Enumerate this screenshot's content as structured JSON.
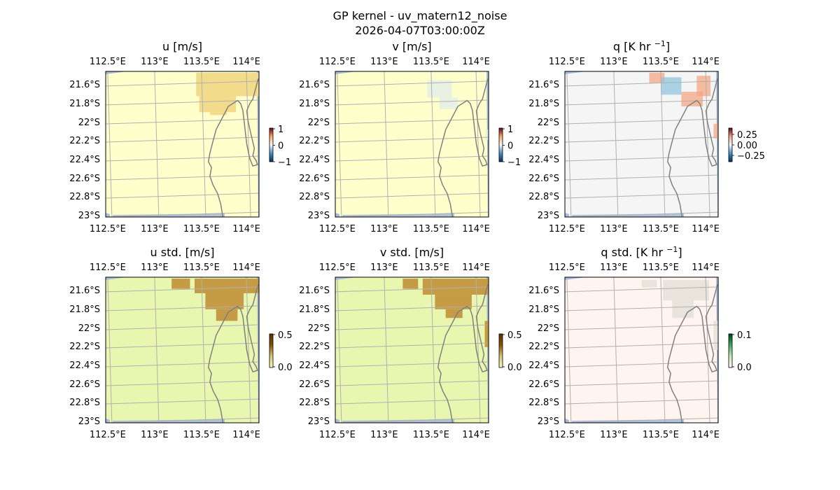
{
  "figure": {
    "title": "GP kernel - uv_matern12_noise",
    "subtitle": "2026-04-07T03:00:00Z"
  },
  "lon_ticks": [
    "112.5°E",
    "113°E",
    "113.5°E",
    "114°E"
  ],
  "lat_ticks": [
    "21.6°S",
    "21.8°S",
    "22°S",
    "22.2°S",
    "22.4°S",
    "22.6°S",
    "22.8°S",
    "23°S"
  ],
  "colors": {
    "ocean": "#a6bddb",
    "grid": "#b0b0b0",
    "coast": "#808080",
    "u_base": "#ffffcc",
    "u_patch": "#f2dc8c",
    "v_base": "#ffffcc",
    "v_patch": "#e6efe6",
    "q_base": "#f5f5f5",
    "q_warm": "#f4a582",
    "q_cool": "#92c5de",
    "std_uv_base": "#e9f6b0",
    "std_uv_patch": "#c69b45",
    "std_q_base": "#fff4f0",
    "std_q_patch": "#e8e4dc"
  },
  "panels": [
    {
      "id": "u",
      "title_main": "u [m/s]",
      "title_sup": "",
      "title_end": "",
      "base": "u_base",
      "patch": "u_patch",
      "ticks": [
        "1",
        "0",
        "−1"
      ]
    },
    {
      "id": "v",
      "title_main": "v [m/s]",
      "title_sup": "",
      "title_end": "",
      "base": "v_base",
      "patch": "v_patch",
      "ticks": [
        "1",
        "0",
        "−1"
      ]
    },
    {
      "id": "q",
      "title_main": "q [K hr ",
      "title_sup": "−1",
      "title_end": "]",
      "base": "q_base",
      "patch": "q_warm",
      "patch2": "q_cool",
      "ticks": [
        "0.25",
        "0.00",
        "−0.25"
      ]
    },
    {
      "id": "u_std",
      "title_main": "u std. [m/s]",
      "title_sup": "",
      "title_end": "",
      "base": "std_uv_base",
      "patch": "std_uv_patch",
      "ticks": [
        "0.5",
        "0.0"
      ]
    },
    {
      "id": "v_std",
      "title_main": "v std. [m/s]",
      "title_sup": "",
      "title_end": "",
      "base": "std_uv_base",
      "patch": "std_uv_patch",
      "ticks": [
        "0.5",
        "0.0"
      ]
    },
    {
      "id": "q_std",
      "title_main": "q std. [K hr ",
      "title_sup": "−1",
      "title_end": "]",
      "base": "std_q_base",
      "patch": "std_q_patch",
      "ticks": [
        "0.1",
        "0.0"
      ]
    }
  ]
}
